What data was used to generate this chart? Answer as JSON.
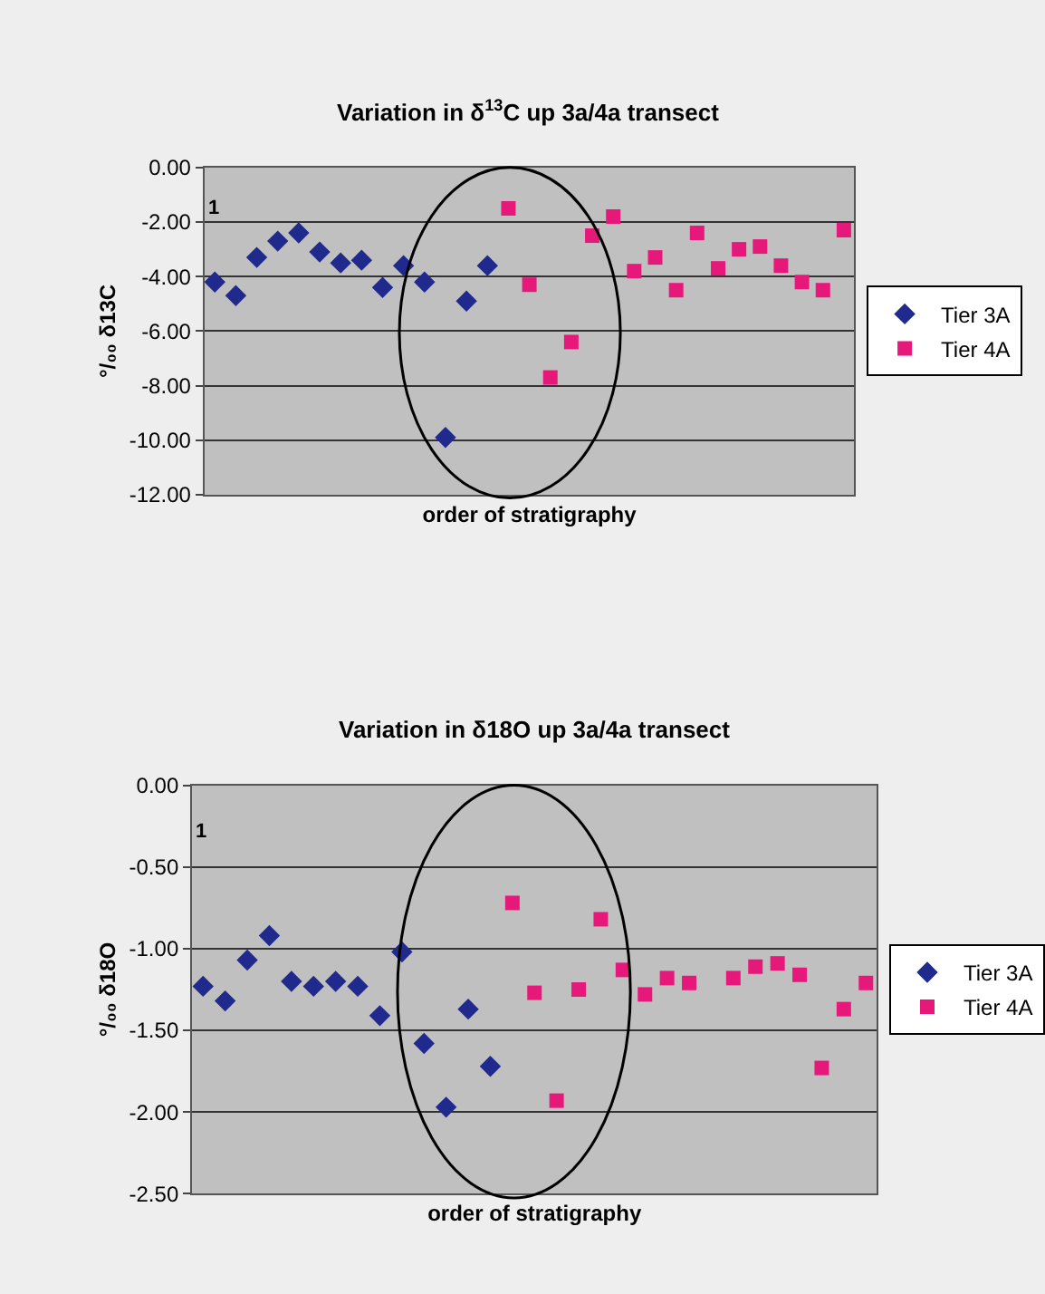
{
  "chart_data": [
    {
      "type": "scatter",
      "title": "Variation in δ$^{13}$C up 3a/4a transect",
      "xlabel": "order of stratigraphy",
      "ylabel": "°/₀₀ δ13C",
      "categories": [
        null,
        null,
        null,
        null,
        null,
        null,
        null,
        null,
        null,
        null,
        null,
        null,
        null,
        null,
        null,
        null,
        null,
        null,
        null,
        null,
        null,
        null,
        null,
        null,
        null,
        null,
        null,
        null,
        null,
        null,
        null
      ],
      "series": [
        {
          "name": "Tier 3A",
          "color": "#1f2a8c",
          "marker": "diamond",
          "values": [
            -4.2,
            -4.7,
            -3.3,
            -2.7,
            -2.4,
            -3.1,
            -3.5,
            -3.4,
            -4.4,
            -3.6,
            -4.2,
            -9.9,
            -4.9,
            -3.6,
            null,
            null,
            null,
            null,
            null,
            null,
            null,
            null,
            null,
            null,
            null,
            null,
            null,
            null,
            null,
            null,
            null
          ]
        },
        {
          "name": "Tier 4A",
          "color": "#e6197a",
          "marker": "square",
          "values": [
            null,
            null,
            null,
            null,
            null,
            null,
            null,
            null,
            null,
            null,
            null,
            null,
            null,
            null,
            -1.5,
            -4.3,
            -7.7,
            -6.4,
            -2.5,
            -1.8,
            -3.8,
            -3.3,
            -4.5,
            -2.4,
            -3.7,
            -3.0,
            -2.9,
            -3.6,
            -4.2,
            -4.5,
            -2.3
          ]
        }
      ],
      "ylim": [
        -12,
        0
      ],
      "yticks": [
        {
          "value": -12,
          "label": "-12.00"
        },
        {
          "value": -10,
          "label": "-10.00"
        },
        {
          "value": -8,
          "label": "-8.00"
        },
        {
          "value": -6,
          "label": "-6.00"
        },
        {
          "value": -4,
          "label": "-4.00"
        },
        {
          "value": -2,
          "label": "-2.00"
        },
        {
          "value": 0,
          "label": "0.00"
        }
      ],
      "grid": "y",
      "legend": "right",
      "tick_labels": "y",
      "annotations": [
        "1"
      ]
    },
    {
      "type": "scatter",
      "title": "Variation in δ18O up 3a/4a transect",
      "xlabel": "order of stratigraphy",
      "ylabel": "°/₀₀ δ18O",
      "categories": [
        null,
        null,
        null,
        null,
        null,
        null,
        null,
        null,
        null,
        null,
        null,
        null,
        null,
        null,
        null,
        null,
        null,
        null,
        null,
        null,
        null,
        null,
        null,
        null,
        null,
        null,
        null,
        null,
        null,
        null,
        null
      ],
      "series": [
        {
          "name": "Tier 3A",
          "color": "#1f2a8c",
          "marker": "diamond",
          "values": [
            -1.23,
            -1.32,
            -1.07,
            -0.92,
            -1.2,
            -1.23,
            -1.2,
            -1.23,
            -1.41,
            -1.02,
            -1.58,
            -1.97,
            -1.37,
            -1.72,
            null,
            null,
            null,
            null,
            null,
            null,
            null,
            null,
            null,
            null,
            null,
            null,
            null,
            null,
            null,
            null,
            null
          ]
        },
        {
          "name": "Tier 4A",
          "color": "#e6197a",
          "marker": "square",
          "values": [
            null,
            null,
            null,
            null,
            null,
            null,
            null,
            null,
            null,
            null,
            null,
            null,
            null,
            null,
            -0.72,
            -1.27,
            -1.93,
            -1.25,
            -0.82,
            -1.13,
            -1.28,
            -1.18,
            -1.21,
            null,
            -1.18,
            -1.11,
            -1.09,
            -1.16,
            -1.73,
            -1.37,
            -1.21
          ]
        }
      ],
      "ylim": [
        -2.5,
        0
      ],
      "yticks": [
        {
          "value": -2.5,
          "label": "-2.50"
        },
        {
          "value": -2,
          "label": "-2.00"
        },
        {
          "value": -1.5,
          "label": "-1.50"
        },
        {
          "value": -1,
          "label": "-1.00"
        },
        {
          "value": -0.5,
          "label": "-0.50"
        },
        {
          "value": 0,
          "label": "0.00"
        }
      ],
      "grid": "y",
      "legend": "right",
      "tick_labels": "y",
      "annotations": [
        "1"
      ]
    }
  ]
}
